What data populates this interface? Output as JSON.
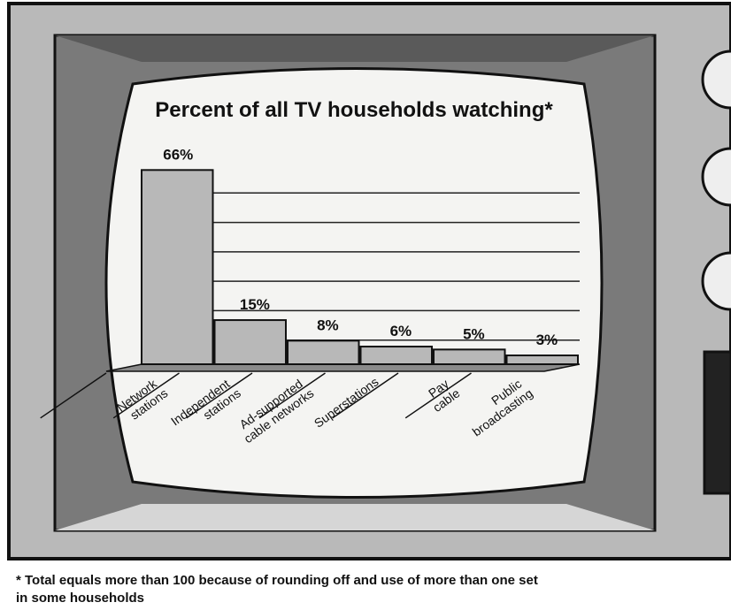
{
  "chart_data": {
    "type": "bar",
    "title": "Percent of all TV households watching*",
    "categories": [
      "Network stations",
      "Independent stations",
      "Ad-supported cable networks",
      "Superstations",
      "Pay cable",
      "Public broadcasting"
    ],
    "values": [
      66,
      15,
      8,
      6,
      5,
      3
    ],
    "value_labels": [
      "66%",
      "15%",
      "8%",
      "6%",
      "5%",
      "3%"
    ],
    "color": "#b8b8b8",
    "ylim": [
      0,
      70
    ],
    "grid": true,
    "footnote": "* Total equals more than 100 because of rounding off and use of more than one set in some households"
  }
}
